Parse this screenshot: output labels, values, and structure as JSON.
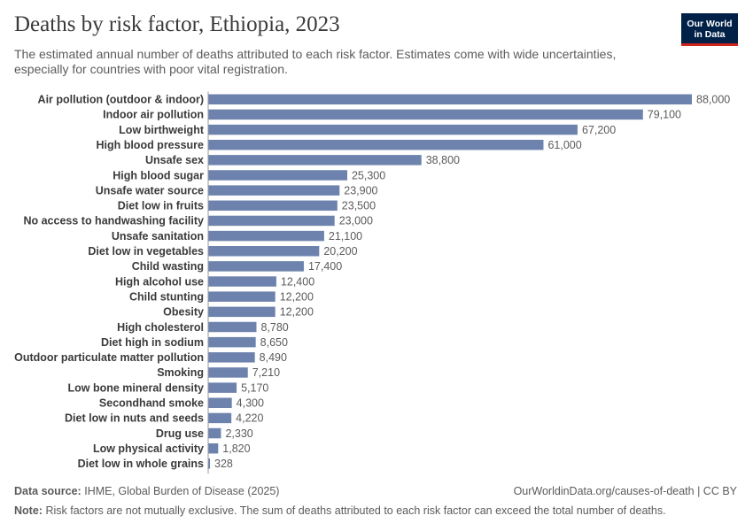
{
  "header": {
    "title": "Deaths by risk factor, Ethiopia, 2023",
    "subtitle": "The estimated annual number of deaths attributed to each risk factor. Estimates come with wide uncertainties, especially for countries with poor vital registration."
  },
  "logo": {
    "line1": "Our World",
    "line2": "in Data",
    "bg_color": "#002147",
    "accent_color": "#ce261e"
  },
  "colors": {
    "bar": "#6d83ad",
    "label": "#3a3a3a",
    "value": "#5b5b5b",
    "axis": "#999999"
  },
  "chart_data": {
    "type": "bar",
    "orientation": "horizontal",
    "title": "Deaths by risk factor, Ethiopia, 2023",
    "categories": [
      "Air pollution (outdoor & indoor)",
      "Indoor air pollution",
      "Low birthweight",
      "High blood pressure",
      "Unsafe sex",
      "High blood sugar",
      "Unsafe water source",
      "Diet low in fruits",
      "No access to handwashing facility",
      "Unsafe sanitation",
      "Diet low in vegetables",
      "Child wasting",
      "High alcohol use",
      "Child stunting",
      "Obesity",
      "High cholesterol",
      "Diet high in sodium",
      "Outdoor particulate matter pollution",
      "Smoking",
      "Low bone mineral density",
      "Secondhand smoke",
      "Diet low in nuts and seeds",
      "Drug use",
      "Low physical activity",
      "Diet low in whole grains"
    ],
    "values": [
      88000,
      79100,
      67200,
      61000,
      38800,
      25300,
      23900,
      23500,
      23000,
      21100,
      20200,
      17400,
      12400,
      12200,
      12200,
      8780,
      8650,
      8490,
      7210,
      5170,
      4300,
      4220,
      2330,
      1820,
      328
    ],
    "value_labels": [
      "88,000",
      "79,100",
      "67,200",
      "61,000",
      "38,800",
      "25,300",
      "23,900",
      "23,500",
      "23,000",
      "21,100",
      "20,200",
      "17,400",
      "12,400",
      "12,200",
      "12,200",
      "8,780",
      "8,650",
      "8,490",
      "7,210",
      "5,170",
      "4,300",
      "4,220",
      "2,330",
      "1,820",
      "328"
    ],
    "xlim": [
      0,
      88000
    ],
    "grid": false
  },
  "footer": {
    "source_label": "Data source:",
    "source_text": "IHME, Global Burden of Disease (2025)",
    "link_text": "OurWorldinData.org/causes-of-death | CC BY",
    "note_label": "Note:",
    "note_text": "Risk factors are not mutually exclusive. The sum of deaths attributed to each risk factor can exceed the total number of deaths."
  }
}
